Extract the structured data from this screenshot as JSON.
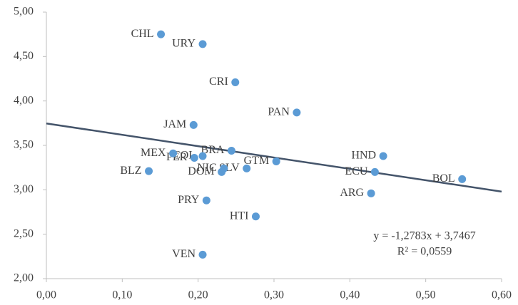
{
  "chart_data": {
    "type": "scatter",
    "labels": [
      "CHL",
      "URY",
      "CRI",
      "PAN",
      "JAM",
      "HND",
      "ECU",
      "BOL",
      "ARG",
      "GTM",
      "SLV",
      "NIC",
      "DOM",
      "BRA",
      "COL",
      "PER",
      "MEX",
      "BLZ",
      "PRY",
      "HTI",
      "VEN"
    ],
    "x": [
      0.151,
      0.206,
      0.249,
      0.33,
      0.194,
      0.444,
      0.433,
      0.548,
      0.428,
      0.303,
      0.264,
      0.234,
      0.231,
      0.244,
      0.206,
      0.195,
      0.167,
      0.135,
      0.211,
      0.276,
      0.206
    ],
    "values": [
      4.75,
      4.64,
      4.21,
      3.87,
      3.73,
      3.38,
      3.2,
      3.12,
      2.96,
      3.32,
      3.24,
      3.24,
      3.2,
      3.44,
      3.38,
      3.36,
      3.41,
      3.21,
      2.88,
      2.7,
      2.27
    ],
    "color": "#5b9bd5",
    "xlim": [
      0,
      0.6
    ],
    "ylim": [
      2,
      5
    ],
    "xticks": [
      {
        "value": 0,
        "label": "0,00"
      },
      {
        "value": 0.1,
        "label": "0,10"
      },
      {
        "value": 0.2,
        "label": "0,20"
      },
      {
        "value": 0.3,
        "label": "0,30"
      },
      {
        "value": 0.4,
        "label": "0,40"
      },
      {
        "value": 0.5,
        "label": "0,50"
      },
      {
        "value": 0.6,
        "label": "0,60"
      }
    ],
    "yticks": [
      {
        "value": 2,
        "label": "2,00"
      },
      {
        "value": 2.5,
        "label": "2,50"
      },
      {
        "value": 3,
        "label": "3,00"
      },
      {
        "value": 3.5,
        "label": "3,50"
      },
      {
        "value": 4,
        "label": "4,00"
      },
      {
        "value": 4.5,
        "label": "4,50"
      },
      {
        "value": 5,
        "label": "5,00"
      }
    ],
    "trendline": {
      "slope": -1.2783,
      "intercept": 3.7467,
      "color": "#44546a",
      "equation": "y = -1,2783x + 3,7467",
      "r2": "R² = 0,0559"
    }
  }
}
